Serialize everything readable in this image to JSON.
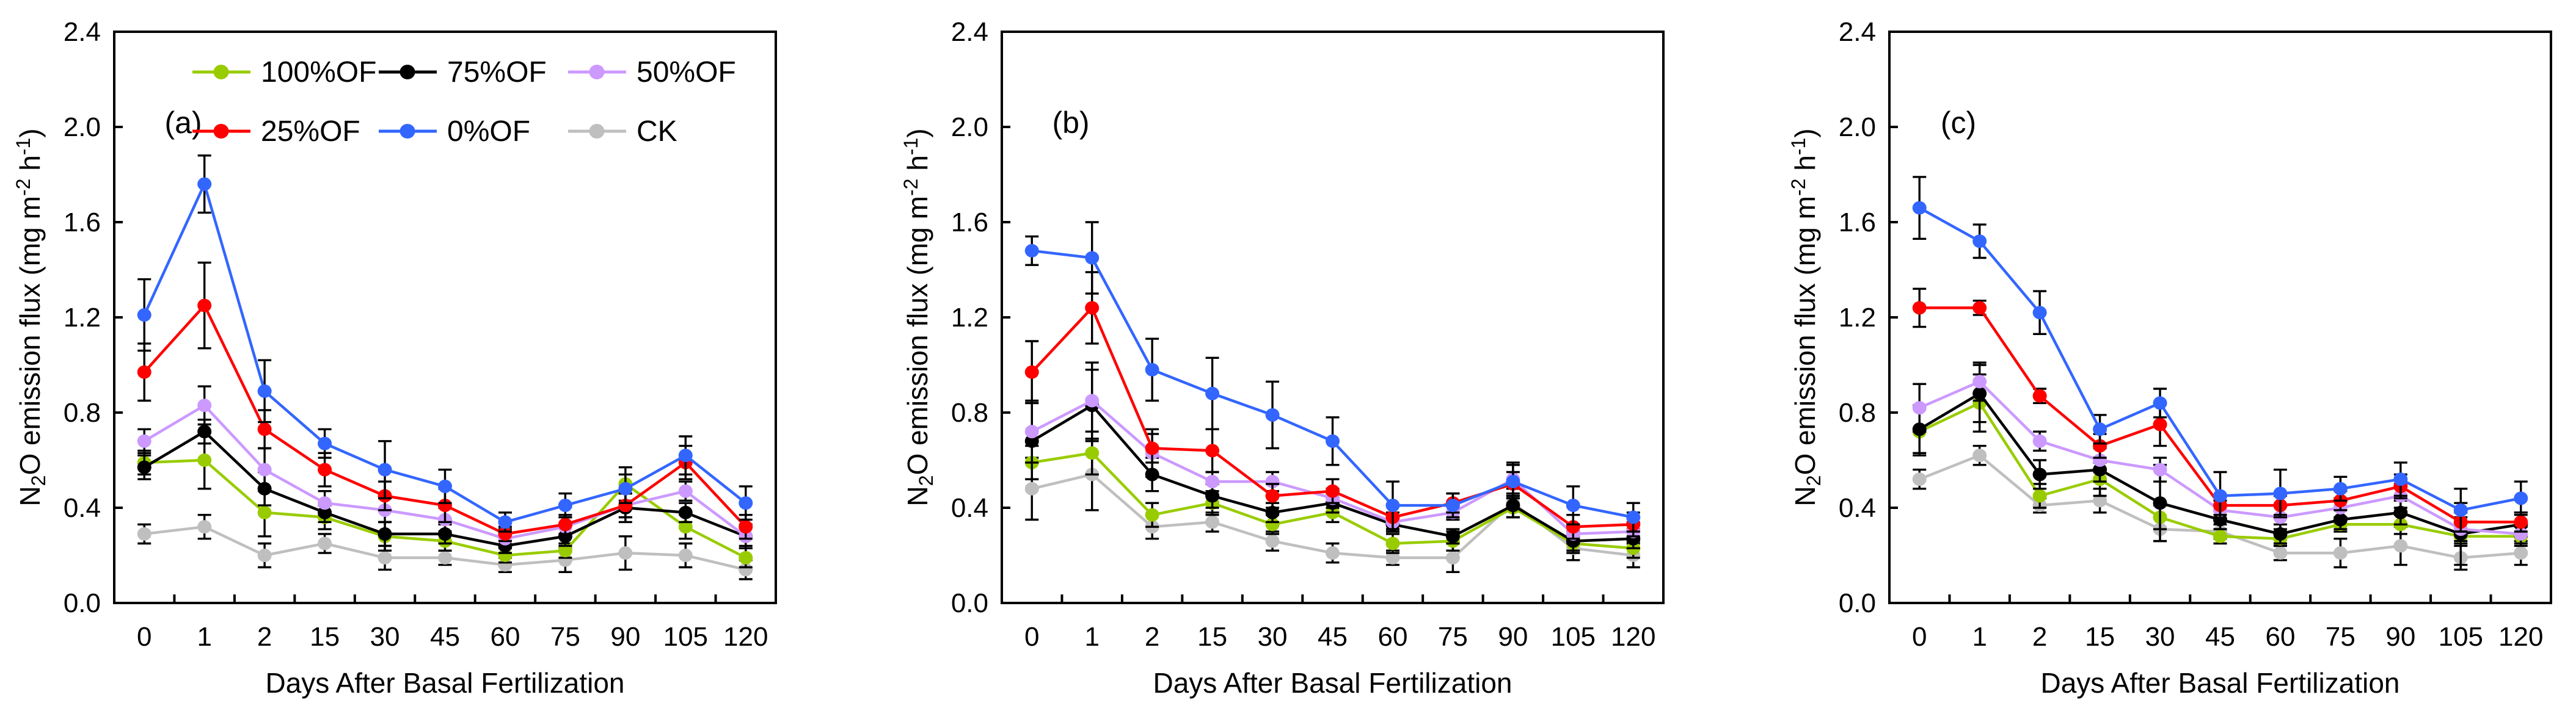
{
  "figure": {
    "background": "#FFFFFF",
    "xlabel": "Days After Basal Fertilization",
    "ylabel": "N2O emission flux (mg m-2 h-1)",
    "ylabel_parts": [
      {
        "text": "N"
      },
      {
        "text": "2",
        "shift": "sub"
      },
      {
        "text": "O emission flux (mg m"
      },
      {
        "text": "-2",
        "shift": "sup"
      },
      {
        "text": " h"
      },
      {
        "text": "-1",
        "shift": "sup"
      },
      {
        "text": ")"
      }
    ],
    "yticks": [
      "0.0",
      "0.4",
      "0.8",
      "1.2",
      "1.6",
      "2.0",
      "2.4"
    ],
    "ylim": [
      0.0,
      2.4
    ],
    "categories": [
      "0",
      "1",
      "2",
      "15",
      "30",
      "45",
      "60",
      "75",
      "90",
      "105",
      "120"
    ],
    "legend": {
      "position": "top-left-of-panel-a",
      "rows": [
        [
          {
            "label": "100%OF",
            "color": "#99CC00"
          },
          {
            "label": "75%OF",
            "color": "#000000"
          },
          {
            "label": "50%OF",
            "color": "#CC99FF"
          }
        ],
        [
          {
            "label": "25%OF",
            "color": "#FF0000"
          },
          {
            "label": "0%OF",
            "color": "#3366FF"
          },
          {
            "label": "CK",
            "color": "#BFBFBF"
          }
        ]
      ]
    },
    "error_bar_color": "#000000",
    "grid": "off"
  },
  "chart_data": [
    {
      "type": "line",
      "panel_letter": "(a)",
      "title": "",
      "xlabel": "Days After Basal Fertilization",
      "ylabel": "N2O emission flux (mg m-2 h-1)",
      "ylim": [
        0.0,
        2.4
      ],
      "categories": [
        "0",
        "1",
        "2",
        "15",
        "30",
        "45",
        "60",
        "75",
        "90",
        "105",
        "120"
      ],
      "show_legend": true,
      "draw_order": [
        5,
        0,
        1,
        2,
        3,
        4
      ],
      "series": [
        {
          "name": "100%OF",
          "color": "#99CC00",
          "values": [
            0.59,
            0.6,
            0.38,
            0.36,
            0.28,
            0.26,
            0.2,
            0.22,
            0.5,
            0.32,
            0.19
          ],
          "errors": [
            0.05,
            0.12,
            0.1,
            0.05,
            0.06,
            0.04,
            0.03,
            0.03,
            0.07,
            0.05,
            0.04
          ]
        },
        {
          "name": "75%OF",
          "color": "#000000",
          "values": [
            0.57,
            0.72,
            0.48,
            0.38,
            0.29,
            0.29,
            0.24,
            0.28,
            0.4,
            0.38,
            0.28
          ],
          "errors": [
            0.05,
            0.05,
            0.07,
            0.04,
            0.05,
            0.04,
            0.03,
            0.04,
            0.06,
            0.04,
            0.05
          ]
        },
        {
          "name": "50%OF",
          "color": "#CC99FF",
          "values": [
            0.68,
            0.83,
            0.56,
            0.42,
            0.39,
            0.35,
            0.27,
            0.32,
            0.41,
            0.47,
            0.28
          ],
          "errors": [
            0.05,
            0.08,
            0.09,
            0.05,
            0.05,
            0.05,
            0.04,
            0.04,
            0.05,
            0.04,
            0.04
          ]
        },
        {
          "name": "25%OF",
          "color": "#FF0000",
          "values": [
            0.97,
            1.25,
            0.73,
            0.56,
            0.45,
            0.41,
            0.29,
            0.33,
            0.41,
            0.59,
            0.32
          ],
          "errors": [
            0.12,
            0.18,
            0.08,
            0.07,
            0.06,
            0.07,
            0.03,
            0.04,
            0.05,
            0.07,
            0.05
          ]
        },
        {
          "name": "0%OF",
          "color": "#3366FF",
          "values": [
            1.21,
            1.76,
            0.89,
            0.67,
            0.56,
            0.49,
            0.34,
            0.41,
            0.48,
            0.62,
            0.42
          ],
          "errors": [
            0.15,
            0.12,
            0.13,
            0.06,
            0.12,
            0.07,
            0.04,
            0.05,
            0.06,
            0.08,
            0.07
          ]
        },
        {
          "name": "CK",
          "color": "#BFBFBF",
          "values": [
            0.29,
            0.32,
            0.2,
            0.25,
            0.19,
            0.19,
            0.16,
            0.18,
            0.21,
            0.2,
            0.14
          ],
          "errors": [
            0.04,
            0.05,
            0.05,
            0.04,
            0.05,
            0.03,
            0.03,
            0.05,
            0.07,
            0.05,
            0.04
          ]
        }
      ]
    },
    {
      "type": "line",
      "panel_letter": "(b)",
      "title": "",
      "xlabel": "Days After Basal Fertilization",
      "ylabel": "N2O emission flux (mg m-2 h-1)",
      "ylim": [
        0.0,
        2.4
      ],
      "categories": [
        "0",
        "1",
        "2",
        "15",
        "30",
        "45",
        "60",
        "75",
        "90",
        "105",
        "120"
      ],
      "show_legend": false,
      "draw_order": [
        5,
        0,
        1,
        2,
        3,
        4
      ],
      "series": [
        {
          "name": "100%OF",
          "color": "#99CC00",
          "values": [
            0.59,
            0.63,
            0.37,
            0.42,
            0.33,
            0.38,
            0.25,
            0.26,
            0.4,
            0.25,
            0.23
          ],
          "errors": [
            0.07,
            0.09,
            0.05,
            0.05,
            0.04,
            0.04,
            0.04,
            0.04,
            0.04,
            0.04,
            0.04
          ]
        },
        {
          "name": "75%OF",
          "color": "#000000",
          "values": [
            0.68,
            0.83,
            0.54,
            0.45,
            0.38,
            0.42,
            0.33,
            0.28,
            0.41,
            0.26,
            0.27
          ],
          "errors": [
            0.16,
            0.15,
            0.07,
            0.05,
            0.04,
            0.04,
            0.03,
            0.03,
            0.05,
            0.04,
            0.04
          ]
        },
        {
          "name": "50%OF",
          "color": "#CC99FF",
          "values": [
            0.72,
            0.85,
            0.63,
            0.51,
            0.51,
            0.44,
            0.34,
            0.38,
            0.52,
            0.29,
            0.3
          ],
          "errors": [
            0.13,
            0.16,
            0.1,
            0.04,
            0.04,
            0.04,
            0.04,
            0.03,
            0.07,
            0.04,
            0.04
          ]
        },
        {
          "name": "25%OF",
          "color": "#FF0000",
          "values": [
            0.97,
            1.24,
            0.65,
            0.64,
            0.45,
            0.47,
            0.36,
            0.42,
            0.5,
            0.32,
            0.33
          ],
          "errors": [
            0.13,
            0.15,
            0.06,
            0.09,
            0.05,
            0.05,
            0.05,
            0.04,
            0.05,
            0.05,
            0.05
          ]
        },
        {
          "name": "0%OF",
          "color": "#3366FF",
          "values": [
            1.48,
            1.45,
            0.98,
            0.88,
            0.79,
            0.68,
            0.41,
            0.41,
            0.51,
            0.41,
            0.36
          ],
          "errors": [
            0.06,
            0.15,
            0.13,
            0.15,
            0.14,
            0.1,
            0.1,
            0.05,
            0.07,
            0.08,
            0.06
          ]
        },
        {
          "name": "CK",
          "color": "#BFBFBF",
          "values": [
            0.48,
            0.54,
            0.32,
            0.34,
            0.26,
            0.21,
            0.19,
            0.19,
            0.42,
            0.23,
            0.2
          ],
          "errors": [
            0.13,
            0.15,
            0.05,
            0.04,
            0.04,
            0.04,
            0.03,
            0.06,
            0.06,
            0.05,
            0.05
          ]
        }
      ]
    },
    {
      "type": "line",
      "panel_letter": "(c)",
      "title": "",
      "xlabel": "Days After Basal Fertilization",
      "ylabel": "N2O emission flux (mg m-2 h-1)",
      "ylim": [
        0.0,
        2.4
      ],
      "categories": [
        "0",
        "1",
        "2",
        "15",
        "30",
        "45",
        "60",
        "75",
        "90",
        "105",
        "120"
      ],
      "show_legend": false,
      "draw_order": [
        5,
        0,
        1,
        2,
        3,
        4
      ],
      "series": [
        {
          "name": "100%OF",
          "color": "#99CC00",
          "values": [
            0.72,
            0.84,
            0.45,
            0.52,
            0.36,
            0.28,
            0.27,
            0.33,
            0.33,
            0.28,
            0.28
          ],
          "errors": [
            0.1,
            0.12,
            0.05,
            0.07,
            0.05,
            0.03,
            0.03,
            0.03,
            0.04,
            0.03,
            0.04
          ]
        },
        {
          "name": "75%OF",
          "color": "#000000",
          "values": [
            0.73,
            0.88,
            0.54,
            0.56,
            0.42,
            0.35,
            0.29,
            0.35,
            0.38,
            0.29,
            0.33
          ],
          "errors": [
            0.1,
            0.12,
            0.06,
            0.05,
            0.16,
            0.04,
            0.04,
            0.04,
            0.05,
            0.13,
            0.05
          ]
        },
        {
          "name": "50%OF",
          "color": "#CC99FF",
          "values": [
            0.82,
            0.93,
            0.68,
            0.6,
            0.56,
            0.39,
            0.36,
            0.4,
            0.45,
            0.31,
            0.29
          ],
          "errors": [
            0.1,
            0.08,
            0.04,
            0.05,
            0.05,
            0.04,
            0.05,
            0.04,
            0.05,
            0.05,
            0.04
          ]
        },
        {
          "name": "25%OF",
          "color": "#FF0000",
          "values": [
            1.24,
            1.24,
            0.87,
            0.66,
            0.75,
            0.41,
            0.41,
            0.43,
            0.49,
            0.34,
            0.34
          ],
          "errors": [
            0.08,
            0.03,
            0.03,
            0.05,
            0.09,
            0.04,
            0.04,
            0.04,
            0.05,
            0.04,
            0.04
          ]
        },
        {
          "name": "0%OF",
          "color": "#3366FF",
          "values": [
            1.66,
            1.52,
            1.22,
            0.73,
            0.84,
            0.45,
            0.46,
            0.48,
            0.52,
            0.39,
            0.44
          ],
          "errors": [
            0.13,
            0.07,
            0.09,
            0.06,
            0.06,
            0.1,
            0.1,
            0.05,
            0.07,
            0.09,
            0.07
          ]
        },
        {
          "name": "CK",
          "color": "#BFBFBF",
          "values": [
            0.52,
            0.62,
            0.41,
            0.43,
            0.31,
            0.3,
            0.21,
            0.21,
            0.24,
            0.19,
            0.21
          ],
          "errors": [
            0.04,
            0.04,
            0.03,
            0.05,
            0.05,
            0.03,
            0.03,
            0.06,
            0.08,
            0.05,
            0.05
          ]
        }
      ]
    }
  ]
}
